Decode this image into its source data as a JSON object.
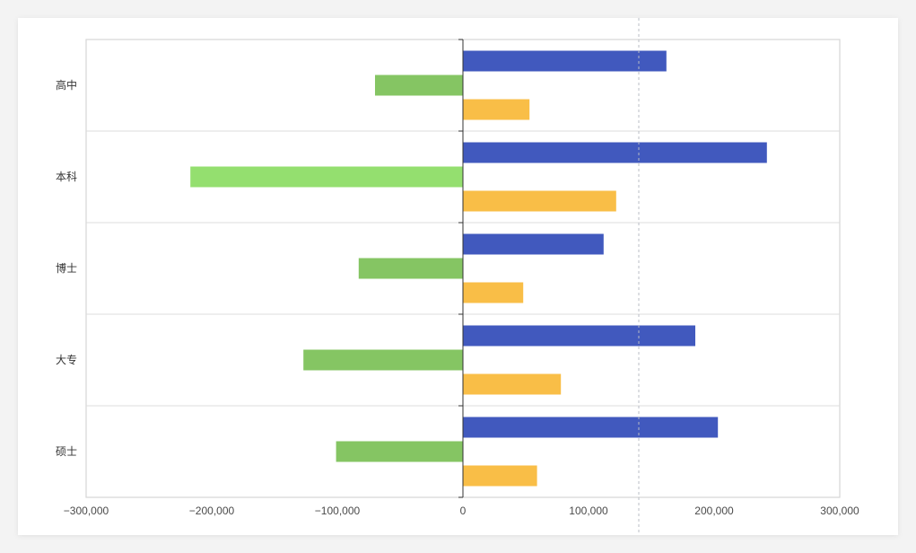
{
  "chart_data": {
    "type": "bar",
    "orientation": "horizontal",
    "categories": [
      "高中",
      "本科",
      "博士",
      "大专",
      "硕士"
    ],
    "series": [
      {
        "values": [
          162000,
          242000,
          112000,
          185000,
          203000
        ],
        "color": "#4159be"
      },
      {
        "values": [
          -70000,
          -217000,
          -83000,
          -127000,
          -101000
        ],
        "color": "#85c563",
        "highlight_color": "#94df6f",
        "highlight_index": 1
      },
      {
        "values": [
          53000,
          122000,
          48000,
          78000,
          59000
        ],
        "color": "#f9be47"
      }
    ],
    "xlim": [
      -300000,
      300000
    ],
    "x_ticks": [
      -300000,
      -200000,
      -100000,
      0,
      100000,
      200000,
      300000
    ],
    "x_tick_labels": [
      "−300,000",
      "−200,000",
      "−100,000",
      "0",
      "100,000",
      "200,000",
      "300,000"
    ],
    "reference_line_value": 140000,
    "grid": "horizontal-category-separators",
    "title": "",
    "xlabel": "",
    "ylabel": ""
  }
}
